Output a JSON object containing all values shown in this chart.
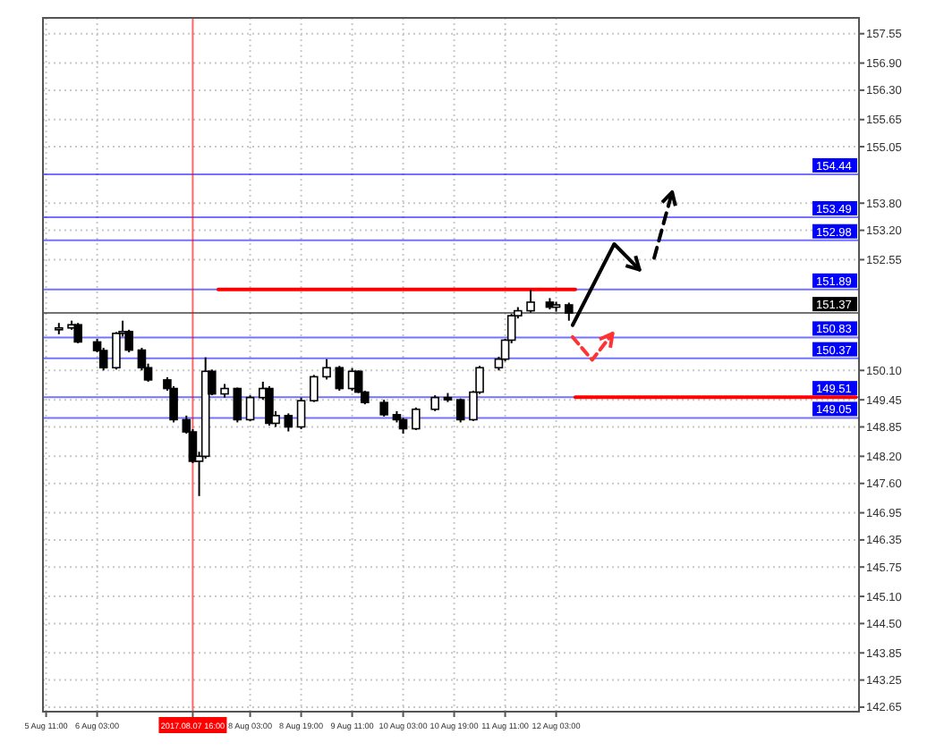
{
  "chart_data": {
    "type": "candlestick",
    "categories": [
      "5 Aug 11:00",
      null,
      null,
      null,
      null,
      null,
      null,
      null,
      "6 Aug 03:00",
      null,
      null,
      null,
      null,
      null,
      null,
      null,
      null,
      null,
      null,
      null,
      null,
      null,
      null,
      "2017.08.07 16:00",
      null,
      null,
      null,
      null,
      null,
      null,
      null,
      null,
      "8 Aug 03:00",
      null,
      null,
      null,
      null,
      null,
      null,
      null,
      "8 Aug 19:00",
      null,
      null,
      null,
      null,
      null,
      null,
      null,
      "9 Aug 11:00",
      null,
      null,
      null,
      null,
      null,
      null,
      null,
      "10 Aug 03:00",
      null,
      null,
      null,
      null,
      null,
      null,
      null,
      "10 Aug 19:00",
      null,
      null,
      null,
      null,
      null,
      null,
      null,
      "11 Aug 11:00",
      null,
      null,
      null,
      null,
      null,
      null,
      null,
      "12 Aug 03:00",
      null,
      null,
      null,
      null,
      null,
      null,
      null,
      null,
      null,
      null,
      null,
      null,
      null,
      null,
      null,
      null,
      null,
      null,
      null,
      null,
      null,
      null,
      null,
      null,
      null,
      null,
      null,
      null,
      null,
      null,
      null,
      null,
      null,
      null,
      null,
      null,
      null,
      null,
      null,
      null,
      null,
      null,
      null,
      null,
      null,
      null,
      null
    ],
    "ohlc": [
      null,
      null,
      [
        151.0,
        151.15,
        150.9,
        151.04
      ],
      null,
      [
        151.04,
        151.2,
        151.0,
        151.11
      ],
      [
        151.11,
        151.15,
        150.7,
        150.73
      ],
      null,
      null,
      [
        150.73,
        150.8,
        150.5,
        150.54
      ],
      [
        150.54,
        150.6,
        150.1,
        150.16
      ],
      null,
      [
        150.16,
        150.95,
        150.12,
        150.92
      ],
      [
        150.92,
        151.2,
        150.85,
        150.96
      ],
      [
        150.96,
        151.0,
        150.5,
        150.55
      ],
      null,
      [
        150.55,
        150.6,
        150.1,
        150.16
      ],
      [
        150.16,
        150.25,
        149.85,
        149.89
      ],
      null,
      null,
      [
        149.89,
        149.95,
        149.65,
        149.7
      ],
      [
        149.7,
        149.75,
        148.95,
        149.01
      ],
      null,
      [
        149.01,
        149.1,
        148.7,
        148.74
      ],
      [
        148.74,
        148.8,
        148.05,
        148.09
      ],
      [
        148.09,
        148.3,
        147.32,
        148.2
      ],
      [
        148.2,
        150.39,
        148.15,
        150.08
      ],
      [
        150.08,
        150.12,
        149.55,
        149.58
      ],
      null,
      [
        149.58,
        149.8,
        149.5,
        149.7
      ],
      null,
      [
        149.7,
        149.72,
        148.95,
        149.01
      ],
      null,
      [
        149.01,
        149.55,
        148.98,
        149.5
      ],
      null,
      [
        149.5,
        149.85,
        149.45,
        149.7
      ],
      [
        149.7,
        149.75,
        148.88,
        148.93
      ],
      [
        148.93,
        149.2,
        148.85,
        149.1
      ],
      null,
      [
        149.1,
        149.15,
        148.75,
        148.85
      ],
      null,
      [
        148.85,
        149.5,
        148.8,
        149.43
      ],
      null,
      [
        149.43,
        150.0,
        149.4,
        149.96
      ],
      null,
      [
        149.96,
        150.35,
        149.9,
        150.16
      ],
      null,
      [
        150.16,
        150.2,
        149.65,
        149.7
      ],
      null,
      [
        149.7,
        150.15,
        149.65,
        150.08
      ],
      [
        150.08,
        150.1,
        149.6,
        149.62
      ],
      [
        149.62,
        149.65,
        149.35,
        149.39
      ],
      null,
      null,
      [
        149.39,
        149.45,
        149.08,
        149.12
      ],
      null,
      [
        149.12,
        149.2,
        148.95,
        149.01
      ],
      [
        149.01,
        149.05,
        148.7,
        148.81
      ],
      null,
      [
        148.81,
        149.28,
        148.78,
        149.24
      ],
      null,
      null,
      [
        149.24,
        149.55,
        149.2,
        149.5
      ],
      null,
      [
        149.5,
        149.6,
        149.4,
        149.45
      ],
      null,
      [
        149.45,
        149.48,
        148.95,
        149.01
      ],
      null,
      [
        149.01,
        149.65,
        148.98,
        149.62
      ],
      [
        149.62,
        150.2,
        149.58,
        150.16
      ],
      null,
      null,
      [
        150.16,
        150.4,
        150.1,
        150.35
      ],
      [
        150.35,
        150.8,
        150.3,
        150.77
      ],
      [
        150.77,
        151.35,
        150.7,
        151.31
      ],
      [
        151.31,
        151.5,
        151.25,
        151.42
      ],
      null,
      [
        151.42,
        151.88,
        151.38,
        151.61
      ],
      null,
      null,
      [
        151.61,
        151.7,
        151.45,
        151.5
      ],
      [
        151.5,
        151.62,
        151.4,
        151.55
      ],
      null,
      [
        151.55,
        151.6,
        151.2,
        151.37
      ],
      null,
      null,
      null,
      null,
      null,
      null,
      null,
      null,
      null,
      null,
      null,
      null,
      null,
      null,
      null,
      null,
      null,
      null,
      null,
      null,
      null,
      null,
      null,
      null,
      null,
      null,
      null,
      null,
      null,
      null,
      null,
      null,
      null,
      null,
      null,
      null,
      null,
      null,
      null,
      null,
      null,
      null,
      null,
      null,
      null
    ],
    "series": [
      {
        "type": "line",
        "color": "#ff0000",
        "values": [
          null,
          null,
          null,
          null,
          null,
          null,
          null,
          null,
          null,
          null,
          null,
          null,
          null,
          null,
          null,
          null,
          null,
          null,
          null,
          null,
          null,
          null,
          null,
          null,
          null,
          null,
          null,
          151.89,
          151.89,
          151.89,
          151.89,
          151.89,
          151.89,
          151.89,
          151.89,
          151.89,
          151.89,
          151.89,
          151.89,
          151.89,
          151.89,
          151.89,
          151.89,
          151.89,
          151.89,
          151.89,
          151.89,
          151.89,
          151.89,
          151.89,
          151.89,
          151.89,
          151.89,
          151.89,
          151.89,
          151.89,
          151.89,
          151.89,
          151.89,
          151.89,
          151.89,
          151.89,
          151.89,
          151.89,
          151.89,
          151.89,
          151.89,
          151.89,
          151.89,
          151.89,
          151.89,
          151.89,
          151.89,
          151.89,
          151.89,
          151.89,
          151.89,
          151.89,
          151.89,
          151.89,
          151.89,
          151.89,
          151.89,
          151.89,
          null,
          null,
          null,
          null,
          null,
          null,
          null,
          null,
          null,
          null,
          null,
          null,
          null,
          null,
          null,
          null,
          null,
          null,
          null,
          null,
          null,
          null,
          null,
          null,
          null,
          null,
          null,
          null,
          null,
          null,
          null,
          null,
          null,
          null,
          null,
          null,
          null,
          null,
          null,
          null,
          null,
          null,
          null,
          null
        ]
      },
      {
        "type": "line",
        "color": "#ff0000",
        "values": [
          null,
          null,
          null,
          null,
          null,
          null,
          null,
          null,
          null,
          null,
          null,
          null,
          null,
          null,
          null,
          null,
          null,
          null,
          null,
          null,
          null,
          null,
          null,
          null,
          null,
          null,
          null,
          null,
          null,
          null,
          null,
          null,
          null,
          null,
          null,
          null,
          null,
          null,
          null,
          null,
          null,
          null,
          null,
          null,
          null,
          null,
          null,
          null,
          null,
          null,
          null,
          null,
          null,
          null,
          null,
          null,
          null,
          null,
          null,
          null,
          null,
          null,
          null,
          null,
          null,
          null,
          null,
          null,
          null,
          null,
          null,
          null,
          null,
          null,
          null,
          null,
          null,
          null,
          null,
          null,
          null,
          null,
          null,
          149.51,
          149.51,
          149.51,
          149.51,
          149.51,
          149.51,
          149.51,
          149.51,
          149.51,
          149.51,
          149.51,
          149.51,
          149.51,
          149.51,
          149.51,
          149.51,
          149.51,
          149.51,
          149.51,
          149.51,
          149.51,
          149.51,
          149.51,
          149.51,
          149.51,
          149.51,
          149.51,
          149.51,
          149.51,
          149.51,
          149.51,
          149.51,
          149.51,
          149.51,
          149.51,
          149.51,
          149.51,
          149.51,
          149.51,
          149.51,
          149.51,
          149.51,
          149.51,
          149.51,
          149.51
        ]
      }
    ],
    "ylim": [
      142.55,
      157.9
    ],
    "yticks": [
      {
        "value": 157.55,
        "label": "157.55"
      },
      {
        "value": 156.9,
        "label": "156.90"
      },
      {
        "value": 156.3,
        "label": "156.30"
      },
      {
        "value": 155.65,
        "label": "155.65"
      },
      {
        "value": 155.05,
        "label": "155.05"
      },
      {
        "value": 153.8,
        "label": "153.80"
      },
      {
        "value": 153.2,
        "label": "153.20"
      },
      {
        "value": 152.55,
        "label": "152.55"
      },
      {
        "value": 150.1,
        "label": "150.10"
      },
      {
        "value": 149.45,
        "label": "149.45"
      },
      {
        "value": 148.85,
        "label": "148.85"
      },
      {
        "value": 148.2,
        "label": "148.20"
      },
      {
        "value": 147.6,
        "label": "147.60"
      },
      {
        "value": 146.95,
        "label": "146.95"
      },
      {
        "value": 146.35,
        "label": "146.35"
      },
      {
        "value": 145.75,
        "label": "145.75"
      },
      {
        "value": 145.1,
        "label": "145.10"
      },
      {
        "value": 144.5,
        "label": "144.50"
      },
      {
        "value": 143.85,
        "label": "143.85"
      },
      {
        "value": 143.25,
        "label": "143.25"
      },
      {
        "value": 142.65,
        "label": "142.65"
      }
    ],
    "ref_lines": [
      {
        "axis": "y",
        "value": 154.44,
        "label": "154.44",
        "color": "#0000ff"
      },
      {
        "axis": "y",
        "value": 153.49,
        "label": "153.49",
        "color": "#0000ff"
      },
      {
        "axis": "y",
        "value": 152.98,
        "label": "152.98",
        "color": "#0000ff"
      },
      {
        "axis": "y",
        "value": 151.89,
        "label": "151.89",
        "color": "#0000ff"
      },
      {
        "axis": "y",
        "value": 151.37,
        "label": "151.37",
        "color": "#000000"
      },
      {
        "axis": "y",
        "value": 150.83,
        "label": "150.83",
        "color": "#0000ff"
      },
      {
        "axis": "y",
        "value": 150.37,
        "label": "150.37",
        "color": "#0000ff"
      },
      {
        "axis": "y",
        "value": 149.51,
        "label": "149.51",
        "color": "#0000ff"
      },
      {
        "axis": "y",
        "value": 149.05,
        "label": "149.05",
        "color": "#0000ff"
      },
      {
        "axis": "x",
        "value": "2017.08.07 16:00",
        "color": "#ff0000"
      }
    ],
    "grid": true
  }
}
